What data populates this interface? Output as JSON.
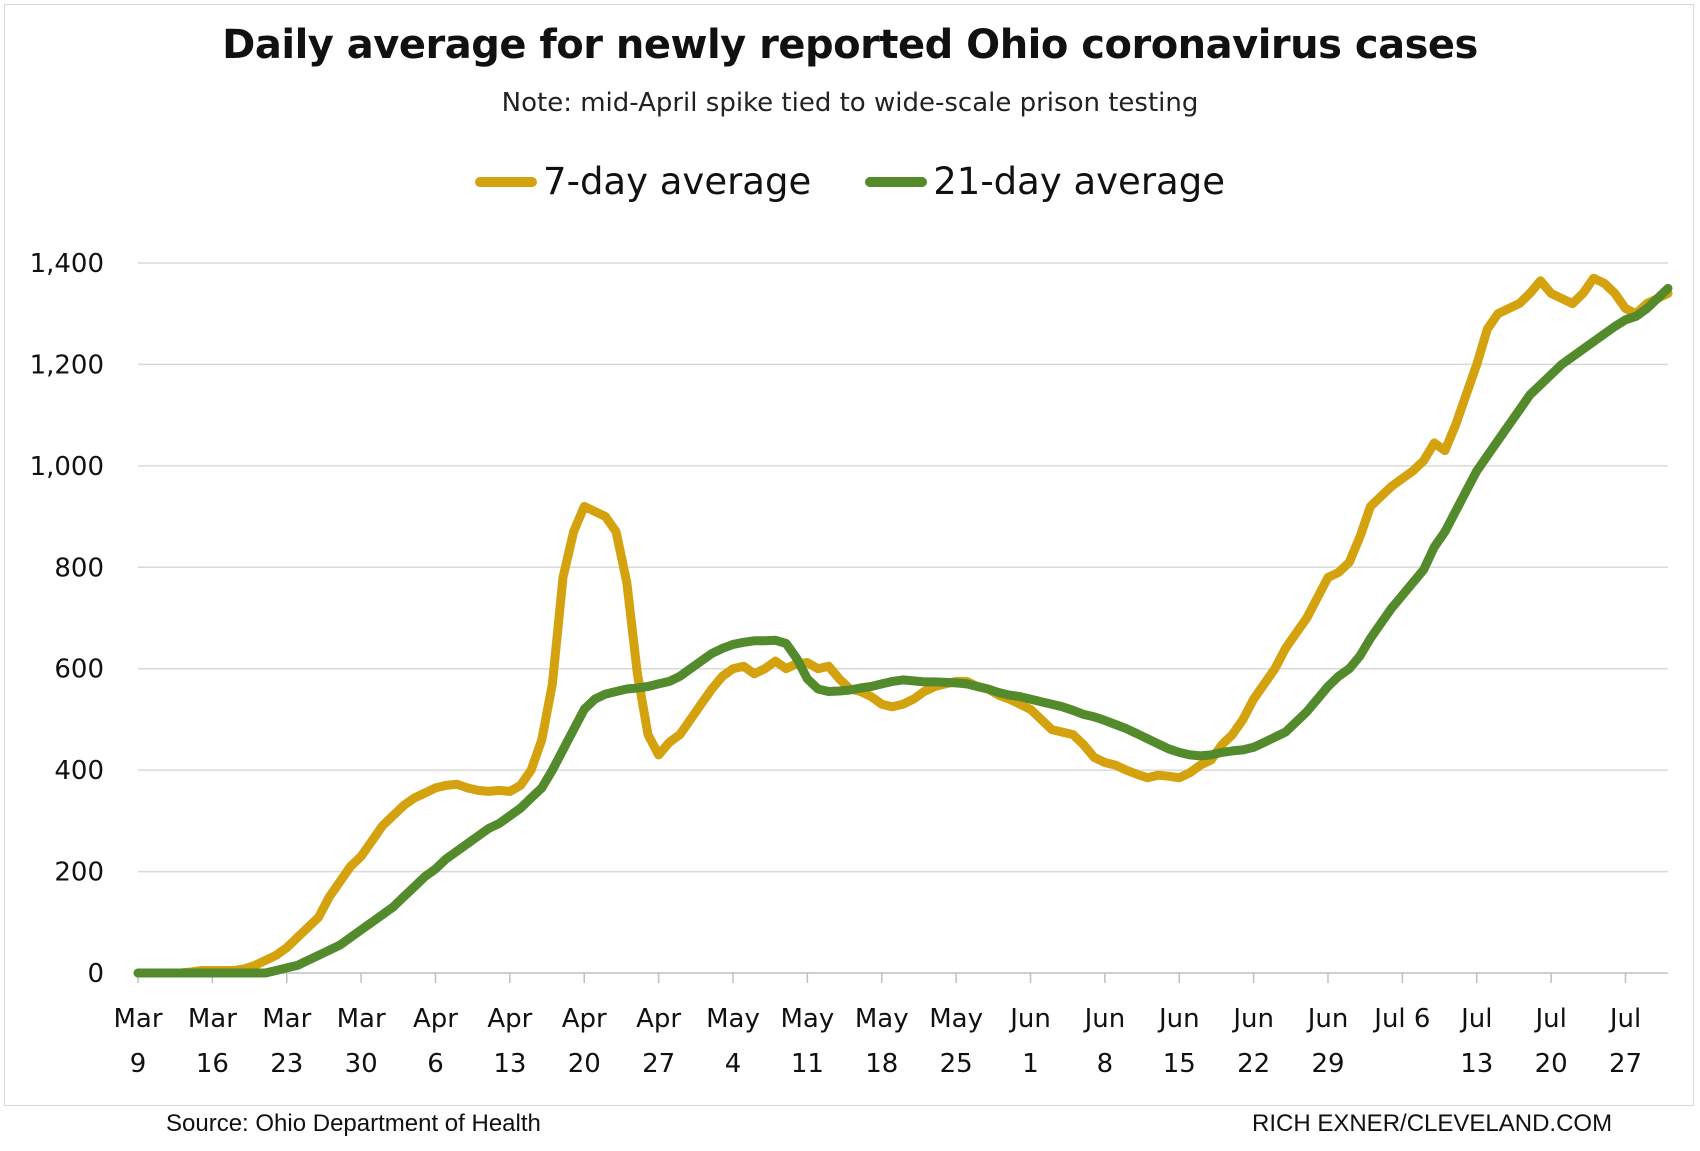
{
  "chart_data": {
    "type": "line",
    "title": "Daily average for newly reported Ohio coronavirus cases",
    "subtitle": "Note: mid-April spike tied to wide-scale prison testing",
    "ylim": [
      0,
      1400
    ],
    "yticks": [
      0,
      200,
      400,
      600,
      800,
      1000,
      1200,
      1400
    ],
    "ytick_labels": [
      "0",
      "200",
      "400",
      "600",
      "800",
      "1,000",
      "1,200",
      "1,400"
    ],
    "x_start": "Mar 9",
    "xticks": [
      {
        "day": 0,
        "line1": "Mar",
        "line2": "9"
      },
      {
        "day": 7,
        "line1": "Mar",
        "line2": "16"
      },
      {
        "day": 14,
        "line1": "Mar",
        "line2": "23"
      },
      {
        "day": 21,
        "line1": "Mar",
        "line2": "30"
      },
      {
        "day": 28,
        "line1": "Apr",
        "line2": "6"
      },
      {
        "day": 35,
        "line1": "Apr",
        "line2": "13"
      },
      {
        "day": 42,
        "line1": "Apr",
        "line2": "20"
      },
      {
        "day": 49,
        "line1": "Apr",
        "line2": "27"
      },
      {
        "day": 56,
        "line1": "May",
        "line2": "4"
      },
      {
        "day": 63,
        "line1": "May",
        "line2": "11"
      },
      {
        "day": 70,
        "line1": "May",
        "line2": "18"
      },
      {
        "day": 77,
        "line1": "May",
        "line2": "25"
      },
      {
        "day": 84,
        "line1": "Jun",
        "line2": "1"
      },
      {
        "day": 91,
        "line1": "Jun",
        "line2": "8"
      },
      {
        "day": 98,
        "line1": "Jun",
        "line2": "15"
      },
      {
        "day": 105,
        "line1": "Jun",
        "line2": "22"
      },
      {
        "day": 112,
        "line1": "Jun",
        "line2": "29"
      },
      {
        "day": 119,
        "line1": "Jul 6",
        "line2": ""
      },
      {
        "day": 126,
        "line1": "Jul",
        "line2": "13"
      },
      {
        "day": 133,
        "line1": "Jul",
        "line2": "20"
      },
      {
        "day": 140,
        "line1": "Jul",
        "line2": "27"
      }
    ],
    "xmax": 144,
    "grid": true,
    "legend_position": "top-center",
    "series": [
      {
        "name": "7-day average",
        "color": "#d4a20e",
        "points": [
          [
            0,
            0
          ],
          [
            2,
            0
          ],
          [
            4,
            0
          ],
          [
            5,
            2
          ],
          [
            6,
            5
          ],
          [
            7,
            5
          ],
          [
            8,
            5
          ],
          [
            9,
            5
          ],
          [
            10,
            8
          ],
          [
            11,
            15
          ],
          [
            12,
            25
          ],
          [
            13,
            35
          ],
          [
            14,
            50
          ],
          [
            15,
            70
          ],
          [
            16,
            90
          ],
          [
            17,
            110
          ],
          [
            18,
            150
          ],
          [
            19,
            180
          ],
          [
            20,
            210
          ],
          [
            21,
            230
          ],
          [
            22,
            260
          ],
          [
            23,
            290
          ],
          [
            24,
            310
          ],
          [
            25,
            330
          ],
          [
            26,
            345
          ],
          [
            27,
            355
          ],
          [
            28,
            365
          ],
          [
            29,
            370
          ],
          [
            30,
            372
          ],
          [
            31,
            365
          ],
          [
            32,
            360
          ],
          [
            33,
            358
          ],
          [
            34,
            360
          ],
          [
            35,
            358
          ],
          [
            36,
            370
          ],
          [
            37,
            400
          ],
          [
            38,
            460
          ],
          [
            39,
            570
          ],
          [
            40,
            780
          ],
          [
            41,
            870
          ],
          [
            42,
            920
          ],
          [
            43,
            910
          ],
          [
            44,
            900
          ],
          [
            45,
            870
          ],
          [
            46,
            770
          ],
          [
            47,
            590
          ],
          [
            48,
            470
          ],
          [
            49,
            430
          ],
          [
            50,
            455
          ],
          [
            51,
            470
          ],
          [
            52,
            500
          ],
          [
            53,
            530
          ],
          [
            54,
            560
          ],
          [
            55,
            585
          ],
          [
            56,
            600
          ],
          [
            57,
            605
          ],
          [
            58,
            590
          ],
          [
            59,
            600
          ],
          [
            60,
            615
          ],
          [
            61,
            600
          ],
          [
            62,
            610
          ],
          [
            63,
            612
          ],
          [
            64,
            600
          ],
          [
            65,
            605
          ],
          [
            66,
            580
          ],
          [
            67,
            560
          ],
          [
            68,
            555
          ],
          [
            69,
            545
          ],
          [
            70,
            530
          ],
          [
            71,
            525
          ],
          [
            72,
            530
          ],
          [
            73,
            540
          ],
          [
            74,
            555
          ],
          [
            75,
            565
          ],
          [
            76,
            570
          ],
          [
            77,
            575
          ],
          [
            78,
            575
          ],
          [
            79,
            565
          ],
          [
            80,
            560
          ],
          [
            81,
            548
          ],
          [
            82,
            540
          ],
          [
            83,
            530
          ],
          [
            84,
            520
          ],
          [
            85,
            500
          ],
          [
            86,
            480
          ],
          [
            87,
            475
          ],
          [
            88,
            470
          ],
          [
            89,
            450
          ],
          [
            90,
            425
          ],
          [
            91,
            415
          ],
          [
            92,
            410
          ],
          [
            93,
            400
          ],
          [
            94,
            392
          ],
          [
            95,
            385
          ],
          [
            96,
            390
          ],
          [
            97,
            388
          ],
          [
            98,
            385
          ],
          [
            99,
            395
          ],
          [
            100,
            410
          ],
          [
            101,
            420
          ],
          [
            102,
            450
          ],
          [
            103,
            470
          ],
          [
            104,
            500
          ],
          [
            105,
            540
          ],
          [
            106,
            570
          ],
          [
            107,
            600
          ],
          [
            108,
            640
          ],
          [
            109,
            670
          ],
          [
            110,
            700
          ],
          [
            111,
            740
          ],
          [
            112,
            780
          ],
          [
            113,
            790
          ],
          [
            114,
            810
          ],
          [
            115,
            860
          ],
          [
            116,
            920
          ],
          [
            117,
            940
          ],
          [
            118,
            960
          ],
          [
            119,
            975
          ],
          [
            120,
            990
          ],
          [
            121,
            1010
          ],
          [
            122,
            1045
          ],
          [
            123,
            1030
          ],
          [
            124,
            1080
          ],
          [
            125,
            1140
          ],
          [
            126,
            1200
          ],
          [
            127,
            1270
          ],
          [
            128,
            1300
          ],
          [
            129,
            1310
          ],
          [
            130,
            1320
          ],
          [
            131,
            1340
          ],
          [
            132,
            1365
          ],
          [
            133,
            1340
          ],
          [
            134,
            1330
          ],
          [
            135,
            1320
          ],
          [
            136,
            1340
          ],
          [
            137,
            1370
          ],
          [
            138,
            1360
          ],
          [
            139,
            1340
          ],
          [
            140,
            1310
          ],
          [
            141,
            1300
          ],
          [
            142,
            1320
          ],
          [
            143,
            1330
          ],
          [
            144,
            1340
          ]
        ]
      },
      {
        "name": "21-day average",
        "color": "#538a2c",
        "points": [
          [
            0,
            0
          ],
          [
            3,
            0
          ],
          [
            6,
            0
          ],
          [
            9,
            0
          ],
          [
            12,
            0
          ],
          [
            13,
            5
          ],
          [
            14,
            10
          ],
          [
            15,
            15
          ],
          [
            16,
            25
          ],
          [
            17,
            35
          ],
          [
            18,
            45
          ],
          [
            19,
            55
          ],
          [
            20,
            70
          ],
          [
            21,
            85
          ],
          [
            22,
            100
          ],
          [
            23,
            115
          ],
          [
            24,
            130
          ],
          [
            25,
            150
          ],
          [
            26,
            170
          ],
          [
            27,
            190
          ],
          [
            28,
            205
          ],
          [
            29,
            225
          ],
          [
            30,
            240
          ],
          [
            31,
            255
          ],
          [
            32,
            270
          ],
          [
            33,
            285
          ],
          [
            34,
            295
          ],
          [
            35,
            310
          ],
          [
            36,
            325
          ],
          [
            37,
            345
          ],
          [
            38,
            365
          ],
          [
            39,
            400
          ],
          [
            40,
            440
          ],
          [
            41,
            480
          ],
          [
            42,
            520
          ],
          [
            43,
            540
          ],
          [
            44,
            550
          ],
          [
            45,
            555
          ],
          [
            46,
            560
          ],
          [
            47,
            562
          ],
          [
            48,
            565
          ],
          [
            49,
            570
          ],
          [
            50,
            575
          ],
          [
            51,
            585
          ],
          [
            52,
            600
          ],
          [
            53,
            615
          ],
          [
            54,
            630
          ],
          [
            55,
            640
          ],
          [
            56,
            648
          ],
          [
            57,
            652
          ],
          [
            58,
            655
          ],
          [
            59,
            655
          ],
          [
            60,
            656
          ],
          [
            61,
            650
          ],
          [
            62,
            620
          ],
          [
            63,
            580
          ],
          [
            64,
            560
          ],
          [
            65,
            555
          ],
          [
            66,
            556
          ],
          [
            67,
            558
          ],
          [
            68,
            562
          ],
          [
            69,
            565
          ],
          [
            70,
            570
          ],
          [
            71,
            575
          ],
          [
            72,
            578
          ],
          [
            73,
            576
          ],
          [
            74,
            574
          ],
          [
            75,
            574
          ],
          [
            76,
            573
          ],
          [
            77,
            572
          ],
          [
            78,
            570
          ],
          [
            79,
            565
          ],
          [
            80,
            560
          ],
          [
            81,
            553
          ],
          [
            82,
            548
          ],
          [
            83,
            545
          ],
          [
            84,
            540
          ],
          [
            85,
            535
          ],
          [
            86,
            530
          ],
          [
            87,
            525
          ],
          [
            88,
            518
          ],
          [
            89,
            510
          ],
          [
            90,
            505
          ],
          [
            91,
            498
          ],
          [
            92,
            490
          ],
          [
            93,
            482
          ],
          [
            94,
            472
          ],
          [
            95,
            462
          ],
          [
            96,
            452
          ],
          [
            97,
            442
          ],
          [
            98,
            435
          ],
          [
            99,
            430
          ],
          [
            100,
            428
          ],
          [
            101,
            430
          ],
          [
            102,
            435
          ],
          [
            103,
            438
          ],
          [
            104,
            440
          ],
          [
            105,
            445
          ],
          [
            106,
            455
          ],
          [
            107,
            465
          ],
          [
            108,
            475
          ],
          [
            109,
            495
          ],
          [
            110,
            515
          ],
          [
            111,
            540
          ],
          [
            112,
            565
          ],
          [
            113,
            585
          ],
          [
            114,
            600
          ],
          [
            115,
            625
          ],
          [
            116,
            660
          ],
          [
            117,
            690
          ],
          [
            118,
            720
          ],
          [
            119,
            745
          ],
          [
            120,
            770
          ],
          [
            121,
            795
          ],
          [
            122,
            840
          ],
          [
            123,
            870
          ],
          [
            124,
            910
          ],
          [
            125,
            950
          ],
          [
            126,
            990
          ],
          [
            127,
            1020
          ],
          [
            128,
            1050
          ],
          [
            129,
            1080
          ],
          [
            130,
            1110
          ],
          [
            131,
            1140
          ],
          [
            132,
            1160
          ],
          [
            133,
            1180
          ],
          [
            134,
            1200
          ],
          [
            135,
            1215
          ],
          [
            136,
            1230
          ],
          [
            137,
            1245
          ],
          [
            138,
            1260
          ],
          [
            139,
            1275
          ],
          [
            140,
            1288
          ],
          [
            141,
            1295
          ],
          [
            142,
            1310
          ],
          [
            143,
            1330
          ],
          [
            144,
            1350
          ]
        ]
      }
    ]
  },
  "footer": {
    "source": "Source: Ohio Department of Health",
    "credit": "RICH EXNER/CLEVELAND.COM"
  }
}
